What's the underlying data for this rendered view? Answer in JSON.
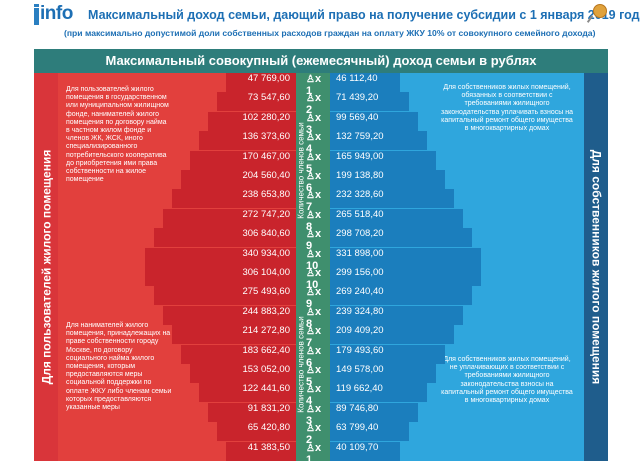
{
  "header": {
    "logo_text": "info",
    "title": "Максимальный доход семьи, дающий право на получение субсидии с 1 января 2019 года",
    "subtitle": "(при максимально допустимой доли собственных расходов граждан на оплату ЖКУ 10% от совокупного семейного дохода)"
  },
  "banner": "Максимальный совокупный (ежемесячный) доход семьи в рублях",
  "left_vertical_label": "Для пользователей жилого помещения",
  "right_vertical_label": "Для собственников жилого помещения",
  "center_label": "Количество членов семьи",
  "top_left_desc": "Для пользователей жилого помещения в государственном или муниципальном жилищном фонде, нанимателей жилого помещения по договору найма в частном жилом фонде и членов ЖК, ЖСК, иного специализированного потребительского кооператива до приобретения ими права собственности на жилое помещение",
  "top_right_desc": "Для собственников жилых помещений, обязанных в соответствии с требованиями жилищного законодательства уплачивать взносы на капитальный ремонт общего имущества в многоквартирных домах",
  "bottom_left_desc": "Для нанимателей жилого помещения, принадлежащих на праве собственности городу Москве, по договору социального найма жилого помещения, которым предоставляются меры социальной поддержки по оплате ЖКУ либо членам семьи которых предоставляются указанные меры",
  "bottom_right_desc": "Для собственников жилых помещений, не уплачивающих в соответствии с требованиями жилищного законодательства взносы на капитальный ремонт общего имущества в многоквартирных домах",
  "top_rows": [
    {
      "count": "1",
      "left": "47 769,00",
      "right": "46 112,40"
    },
    {
      "count": "2",
      "left": "73 547,60",
      "right": "71 439,20"
    },
    {
      "count": "3",
      "left": "102 280,20",
      "right": "99 569,40"
    },
    {
      "count": "4",
      "left": "136 373,60",
      "right": "132 759,20"
    },
    {
      "count": "5",
      "left": "170 467,00",
      "right": "165 949,00"
    },
    {
      "count": "6",
      "left": "204 560,40",
      "right": "199 138,80"
    },
    {
      "count": "7",
      "left": "238 653,80",
      "right": "232 328,60"
    },
    {
      "count": "8",
      "left": "272 747,20",
      "right": "265 518,40"
    },
    {
      "count": "9",
      "left": "306 840,60",
      "right": "298 708,20"
    },
    {
      "count": "10",
      "left": "340 934,00",
      "right": "331 898,00"
    }
  ],
  "bottom_rows": [
    {
      "count": "10",
      "left": "306 104,00",
      "right": "299 156,00"
    },
    {
      "count": "9",
      "left": "275 493,60",
      "right": "269 240,40"
    },
    {
      "count": "8",
      "left": "244 883,20",
      "right": "239 324,80"
    },
    {
      "count": "7",
      "left": "214 272,80",
      "right": "209 409,20"
    },
    {
      "count": "6",
      "left": "183 662,40",
      "right": "179 493,60"
    },
    {
      "count": "5",
      "left": "153 052,00",
      "right": "149 578,00"
    },
    {
      "count": "4",
      "left": "122 441,60",
      "right": "119 662,40"
    },
    {
      "count": "3",
      "left": "91 831,20",
      "right": "89 746,80"
    },
    {
      "count": "2",
      "left": "65 420,80",
      "right": "63 799,40"
    },
    {
      "count": "1",
      "left": "41 383,50",
      "right": "40 109,70"
    }
  ],
  "colors": {
    "brand_blue": "#1d6fb4",
    "teal": "#2e7d7b",
    "red": "#e2403d",
    "red_dark": "#c9242c",
    "blue": "#2fa6dd",
    "blue_dark": "#1b7ebd",
    "green": "#3f8f6e"
  },
  "icons": {
    "person": "person-icon",
    "pin": "pushpin-icon"
  }
}
